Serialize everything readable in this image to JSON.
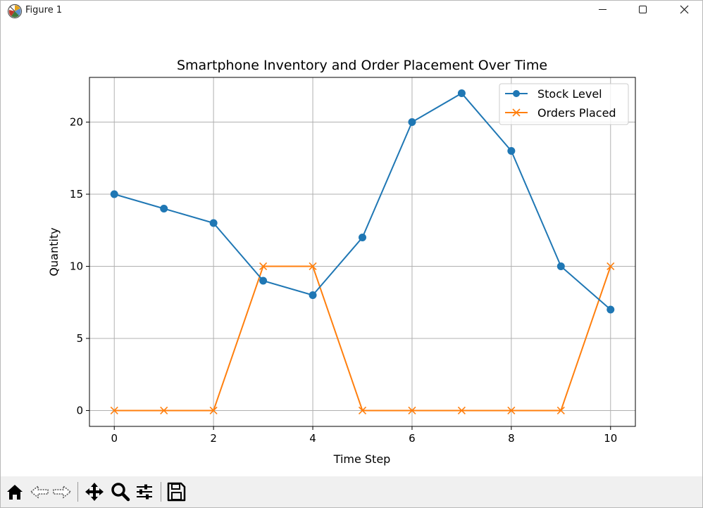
{
  "window": {
    "title": "Figure 1"
  },
  "toolbar": {
    "buttons": [
      "home-icon",
      "back-icon",
      "forward-icon",
      "pan-icon",
      "zoom-icon",
      "configure-subplots-icon",
      "save-icon"
    ]
  },
  "colors": {
    "stock": "#1f77b4",
    "orders": "#ff7f0e",
    "grid": "#b0b0b0",
    "toolbar_bg": "#f0f0f0"
  },
  "chart_data": {
    "type": "line",
    "title": "Smartphone Inventory and Order Placement Over Time",
    "xlabel": "Time Step",
    "ylabel": "Quantity",
    "x": [
      0,
      1,
      2,
      3,
      4,
      5,
      6,
      7,
      8,
      9,
      10
    ],
    "xlim": [
      -0.5,
      10.5
    ],
    "ylim": [
      -1.1,
      23.1
    ],
    "xticks": [
      0,
      2,
      4,
      6,
      8,
      10
    ],
    "yticks": [
      0,
      5,
      10,
      15,
      20
    ],
    "grid": true,
    "legend_position": "top-right",
    "series": [
      {
        "name": "Stock Level",
        "marker": "circle",
        "color": "#1f77b4",
        "values": [
          15,
          14,
          13,
          9,
          8,
          12,
          20,
          22,
          18,
          10,
          7
        ]
      },
      {
        "name": "Orders Placed",
        "marker": "x",
        "color": "#ff7f0e",
        "values": [
          0,
          0,
          0,
          10,
          10,
          0,
          0,
          0,
          0,
          0,
          10
        ]
      }
    ]
  }
}
